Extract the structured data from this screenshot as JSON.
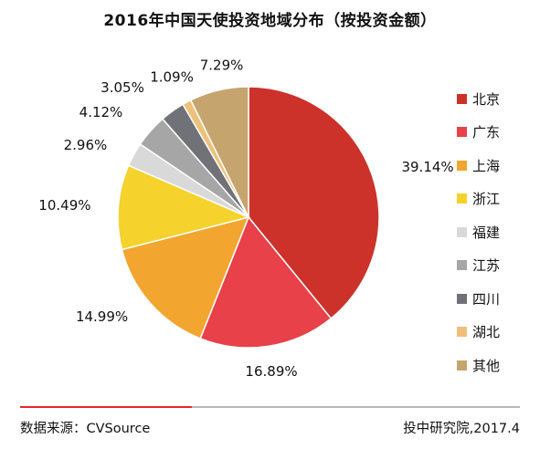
{
  "title": "2016年中国天使投资地域分布（按投资金额）",
  "chart_data": {
    "type": "pie",
    "title": "2016年中国天使投资地域分布（按投资金额）",
    "start": "12 o'clock, clockwise",
    "slices": [
      {
        "label": "北京",
        "value": 39.14,
        "value_label": "39.14%",
        "color": "#cc322a"
      },
      {
        "label": "广东",
        "value": 16.89,
        "value_label": "16.89%",
        "color": "#e8414a"
      },
      {
        "label": "上海",
        "value": 14.99,
        "value_label": "14.99%",
        "color": "#f2a52f"
      },
      {
        "label": "浙江",
        "value": 10.49,
        "value_label": "10.49%",
        "color": "#f5d22c"
      },
      {
        "label": "福建",
        "value": 2.96,
        "value_label": "2.96%",
        "color": "#d9d9d9"
      },
      {
        "label": "江苏",
        "value": 4.12,
        "value_label": "4.12%",
        "color": "#a6a6a6"
      },
      {
        "label": "四川",
        "value": 3.05,
        "value_label": "3.05%",
        "color": "#717278"
      },
      {
        "label": "湖北",
        "value": 1.09,
        "value_label": "1.09%",
        "color": "#eec079"
      },
      {
        "label": "其他",
        "value": 7.29,
        "value_label": "7.29%",
        "color": "#c6a46e"
      }
    ],
    "legend_position": "right"
  },
  "footer": {
    "source": "数据来源：CVSource",
    "credit": "投中研究院,2017.4"
  }
}
